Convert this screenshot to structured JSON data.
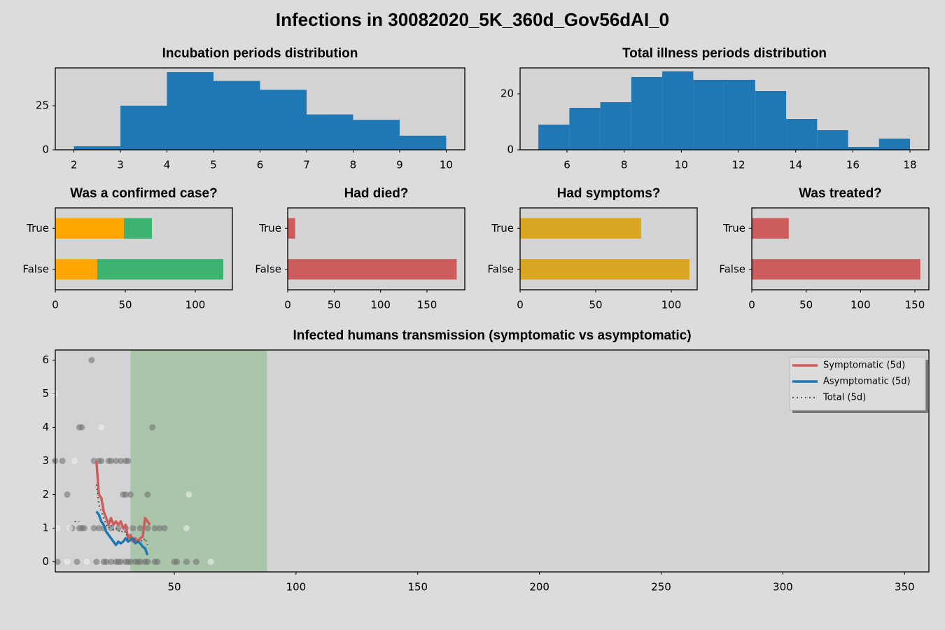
{
  "title": "Infections in 30082020_5K_360d_Gov56dAI_0",
  "chart_data": [
    {
      "type": "histogram",
      "title": "Incubation periods distribution",
      "bins": [
        2,
        3,
        4,
        5,
        6,
        7,
        8,
        9,
        10
      ],
      "values": [
        2,
        25,
        44,
        39,
        34,
        20,
        17,
        8
      ],
      "color": "#1f77b4",
      "xlim": [
        1.6,
        10.4
      ],
      "ylim": [
        0,
        46.4
      ],
      "xticks": [
        2,
        3,
        4,
        5,
        6,
        7,
        8,
        9,
        10
      ],
      "yticks": [
        0,
        25
      ]
    },
    {
      "type": "histogram",
      "title": "Total illness periods distribution",
      "bins": [
        5,
        6.083,
        7.167,
        8.25,
        9.333,
        10.417,
        11.5,
        12.583,
        13.667,
        14.75,
        15.833,
        16.917,
        18
      ],
      "values": [
        9,
        15,
        17,
        26,
        28,
        25,
        25,
        21,
        11,
        7,
        1,
        4
      ],
      "color": "#1f77b4",
      "xlim": [
        4.36,
        18.66
      ],
      "ylim": [
        0,
        29.25
      ],
      "xticks": [
        6,
        8,
        10,
        12,
        14,
        16,
        18
      ],
      "yticks": [
        0,
        20
      ]
    },
    {
      "type": "barh",
      "title": "Was a confirmed case?",
      "categories": [
        "False",
        "True"
      ],
      "series": [
        {
          "color": "#ffa500",
          "values": [
            30,
            49
          ]
        },
        {
          "color": "#3cb371",
          "values": [
            90,
            20
          ]
        }
      ],
      "xlim": [
        0,
        126.5
      ],
      "xticks": [
        0,
        50,
        100
      ]
    },
    {
      "type": "barh",
      "title": "Had died?",
      "categories": [
        "False",
        "True"
      ],
      "series": [
        {
          "color": "#cd5c5c",
          "values": [
            182,
            8
          ]
        }
      ],
      "xlim": [
        0,
        190.7
      ],
      "xticks": [
        0,
        50,
        100,
        150
      ]
    },
    {
      "type": "barh",
      "title": "Had symptoms?",
      "categories": [
        "False",
        "True"
      ],
      "series": [
        {
          "color": "#daa520",
          "values": [
            112,
            80
          ]
        }
      ],
      "xlim": [
        0,
        117.1
      ],
      "xticks": [
        0,
        50,
        100
      ]
    },
    {
      "type": "barh",
      "title": "Was treated?",
      "categories": [
        "False",
        "True"
      ],
      "series": [
        {
          "color": "#cd5c5c",
          "values": [
            155,
            34
          ]
        }
      ],
      "xlim": [
        0,
        162.9
      ],
      "xticks": [
        0,
        50,
        100,
        150
      ]
    },
    {
      "type": "line",
      "title": "Infected humans transmission (symptomatic vs asymptomatic)",
      "xlim": [
        1.1,
        360
      ],
      "ylim": [
        -0.3,
        6.3
      ],
      "xticks": [
        50,
        100,
        150,
        200,
        250,
        300,
        350
      ],
      "yticks": [
        0,
        1,
        2,
        3,
        4,
        5,
        6
      ],
      "span": [
        32,
        88
      ],
      "span_color": "#8fbc8f",
      "legend": "upper right",
      "scatter": [
        {
          "color": "#6e6e6e",
          "x": [
            2,
            10,
            18,
            21,
            22,
            24,
            26,
            27,
            28,
            30,
            31,
            32,
            34,
            35,
            36,
            38,
            39,
            42,
            43,
            50,
            51,
            55,
            59,
            8,
            11,
            12,
            13,
            17,
            19,
            21,
            24,
            27,
            30,
            33,
            36,
            39,
            42,
            44,
            46,
            6,
            29,
            30,
            32,
            39,
            1,
            4,
            17,
            19,
            20,
            23,
            24,
            26,
            28,
            30,
            31,
            11,
            12,
            41,
            16
          ],
          "values": [
            0,
            0,
            0,
            0,
            0,
            0,
            0,
            0,
            0,
            0,
            0,
            0,
            0,
            0,
            0,
            0,
            0,
            0,
            0,
            0,
            0,
            0,
            0,
            1,
            1,
            1,
            1,
            1,
            1,
            1,
            1,
            1,
            1,
            1,
            1,
            1,
            1,
            1,
            1,
            2,
            2,
            2,
            2,
            2,
            3,
            3,
            3,
            3,
            3,
            3,
            3,
            3,
            3,
            3,
            3,
            4,
            4,
            4,
            6
          ]
        },
        {
          "color": "#f2f2f2",
          "x": [
            6,
            14,
            65,
            2,
            7,
            55,
            56,
            9,
            20,
            1
          ],
          "values": [
            0,
            0,
            0,
            1,
            1,
            1,
            2,
            3,
            4,
            5
          ]
        }
      ],
      "series": [
        {
          "name": "Symptomatic (5d)",
          "color": "#cd5c5c",
          "style": "solid",
          "x": [
            18,
            19,
            20,
            21,
            22,
            23,
            24,
            25,
            26,
            27,
            28,
            29,
            30,
            31,
            32,
            33,
            34,
            35,
            36,
            37,
            38,
            39,
            40
          ],
          "values": [
            3,
            2,
            1.9,
            1.5,
            1.3,
            1.1,
            1.3,
            1.1,
            1.2,
            1.1,
            1.2,
            1,
            1.1,
            0.7,
            0.8,
            0.6,
            0.7,
            0.6,
            0.7,
            0.75,
            1.3,
            1.2,
            1.1
          ]
        },
        {
          "name": "Asymptomatic (5d)",
          "color": "#1f77b4",
          "style": "solid",
          "x": [
            18,
            19,
            20,
            21,
            22,
            23,
            24,
            25,
            26,
            27,
            28,
            29,
            30,
            31,
            32,
            33,
            34,
            35,
            36,
            37,
            38,
            39
          ],
          "values": [
            1.5,
            1.4,
            1.2,
            1.1,
            0.9,
            0.8,
            0.7,
            0.6,
            0.5,
            0.6,
            0.55,
            0.6,
            0.7,
            0.6,
            0.65,
            0.7,
            0.55,
            0.6,
            0.55,
            0.45,
            0.4,
            0.2
          ]
        },
        {
          "name": "Total (5d)",
          "color": "#555555",
          "style": "dotted",
          "x": [
            9,
            10,
            11,
            12,
            13,
            14,
            15,
            16,
            17,
            18,
            19,
            20,
            21,
            22,
            23,
            24,
            25,
            26,
            27,
            28,
            29,
            30,
            31,
            32,
            33,
            34,
            35,
            36,
            37,
            38,
            39
          ],
          "values": [
            1.2,
            1.2,
            1.2,
            null,
            null,
            null,
            null,
            null,
            null,
            2.3,
            1.7,
            1.5,
            1.3,
            1.1,
            1,
            1.1,
            0.95,
            1,
            0.9,
            0.95,
            0.85,
            0.9,
            0.65,
            0.7,
            0.65,
            0.65,
            0.6,
            0.65,
            0.6,
            0.7,
            0.5
          ]
        }
      ]
    }
  ]
}
